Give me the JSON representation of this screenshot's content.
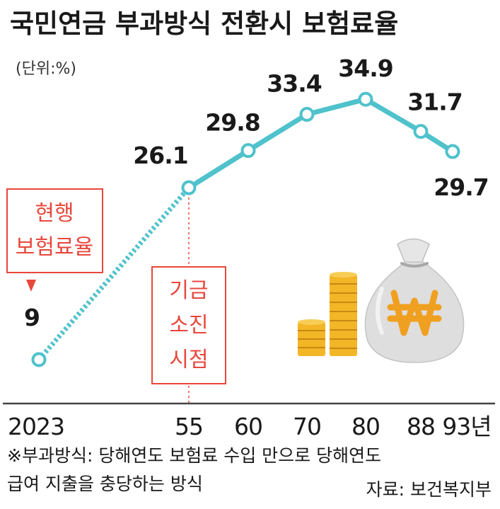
{
  "chart_data": {
    "type": "line",
    "title": "국민연금 부과방식 전환시 보험료율",
    "unit_label": "(단위:%)",
    "x": [
      2023,
      2055,
      2060,
      2070,
      2080,
      2088,
      2093
    ],
    "x_tick_labels": [
      "2023",
      "55",
      "60",
      "70",
      "80",
      "88",
      "93년"
    ],
    "values": [
      9,
      26.1,
      29.8,
      33.4,
      34.9,
      31.7,
      29.7
    ],
    "value_labels": [
      "9",
      "26.1",
      "29.8",
      "33.4",
      "34.9",
      "31.7",
      "29.7"
    ],
    "dotted_segment": {
      "from_x": 2023,
      "to_x": 2055
    },
    "annotations": {
      "current_rate_lines": [
        "현행",
        "보험료율"
      ],
      "fund_depletion_lines": [
        "기금",
        "소진",
        "시점"
      ]
    },
    "footnote_lines": [
      "※부과방식: 당해연도 보험료 수입 만으로 당해연도",
      "급여 지출을 충당하는 방식"
    ],
    "source": "자료: 보건복지부"
  },
  "colors": {
    "line": "#4fc2cc",
    "annotation_red": "#e8473c",
    "coin_gold": "#f2b626",
    "bag_gray": "#dedede",
    "won_orange": "#f0a020"
  },
  "icons": [
    "coin-stack-icon",
    "money-bag-icon",
    "won-sign-icon"
  ]
}
